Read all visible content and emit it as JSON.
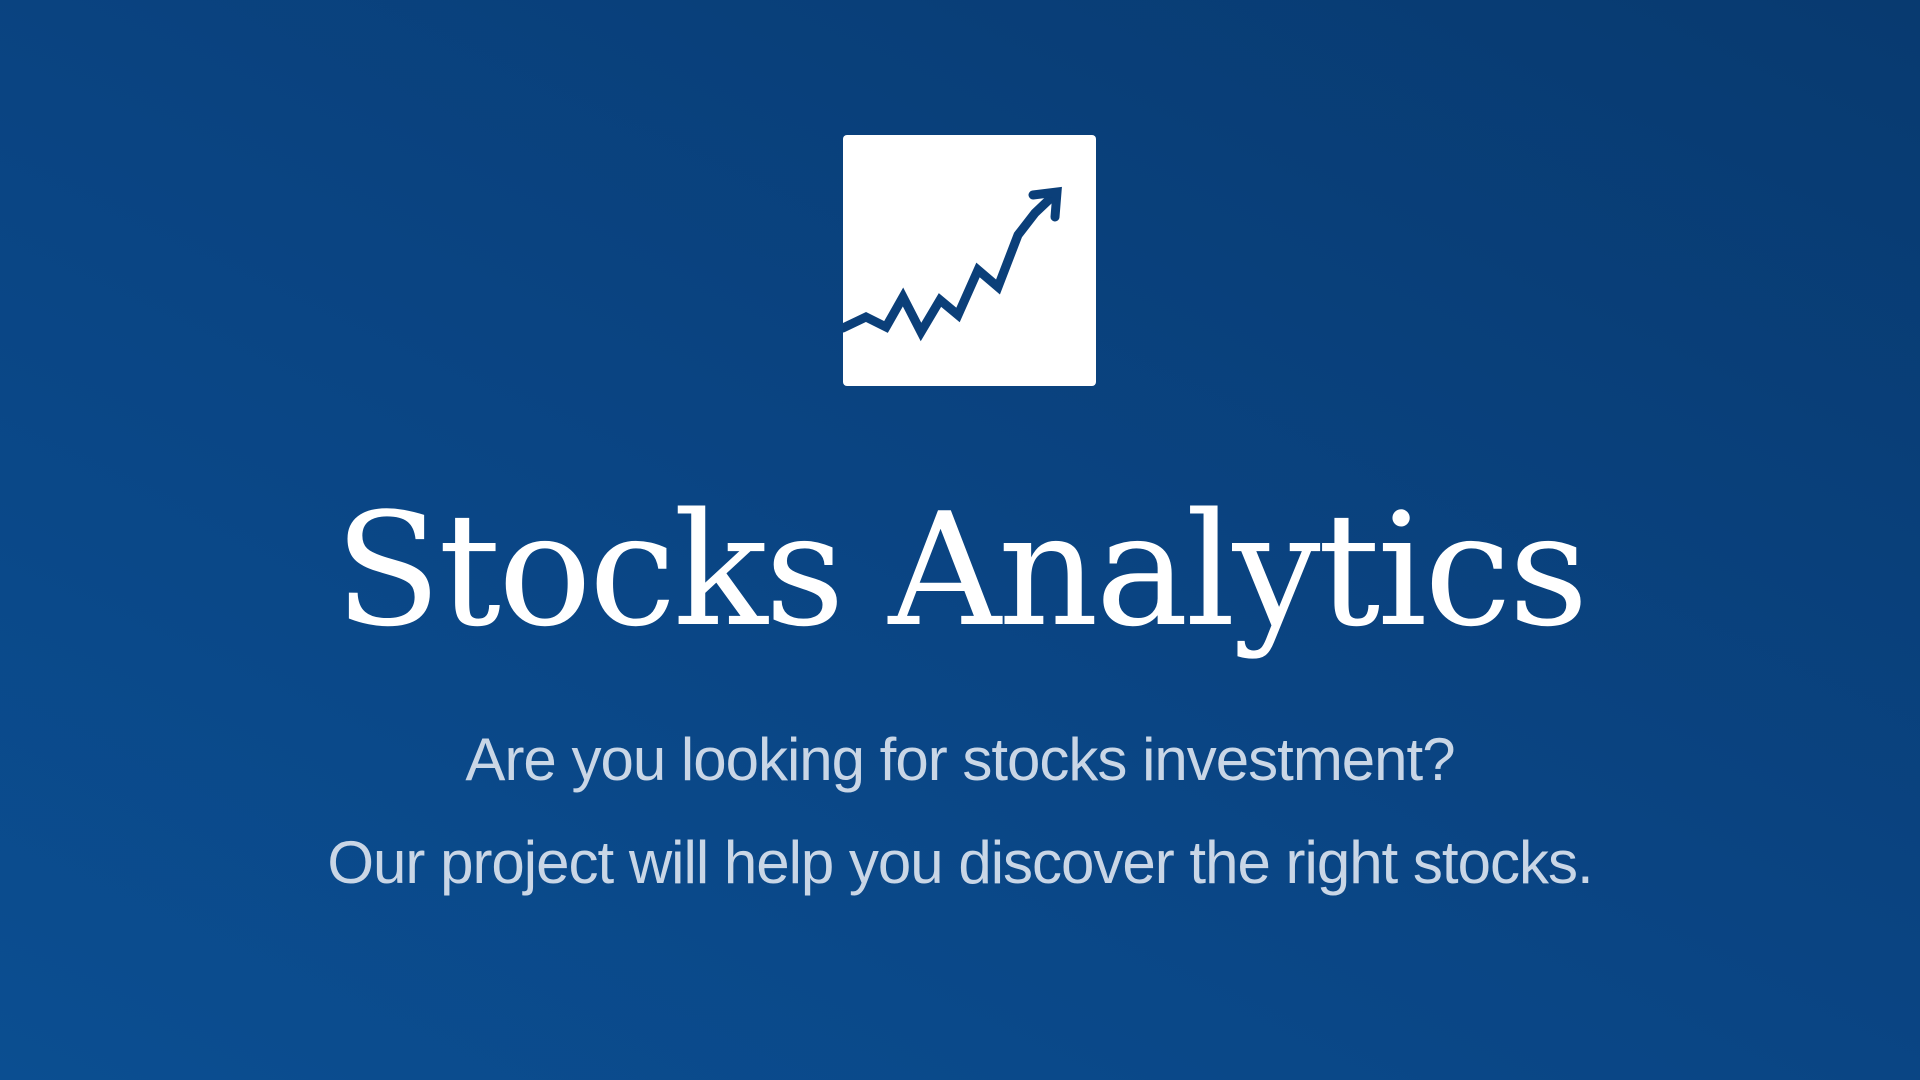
{
  "logo": {
    "icon": "trending-up-chart-icon",
    "color": "#0b3f79",
    "background": "#ffffff"
  },
  "hero": {
    "title": "Stocks Analytics",
    "tagline_line_1": "Are you looking for stocks investment?",
    "tagline_line_2": "Our project will help you discover the right stocks."
  },
  "colors": {
    "background": "#0a4584",
    "title_text": "#ffffff",
    "tagline_text": "#c9d6e6"
  }
}
